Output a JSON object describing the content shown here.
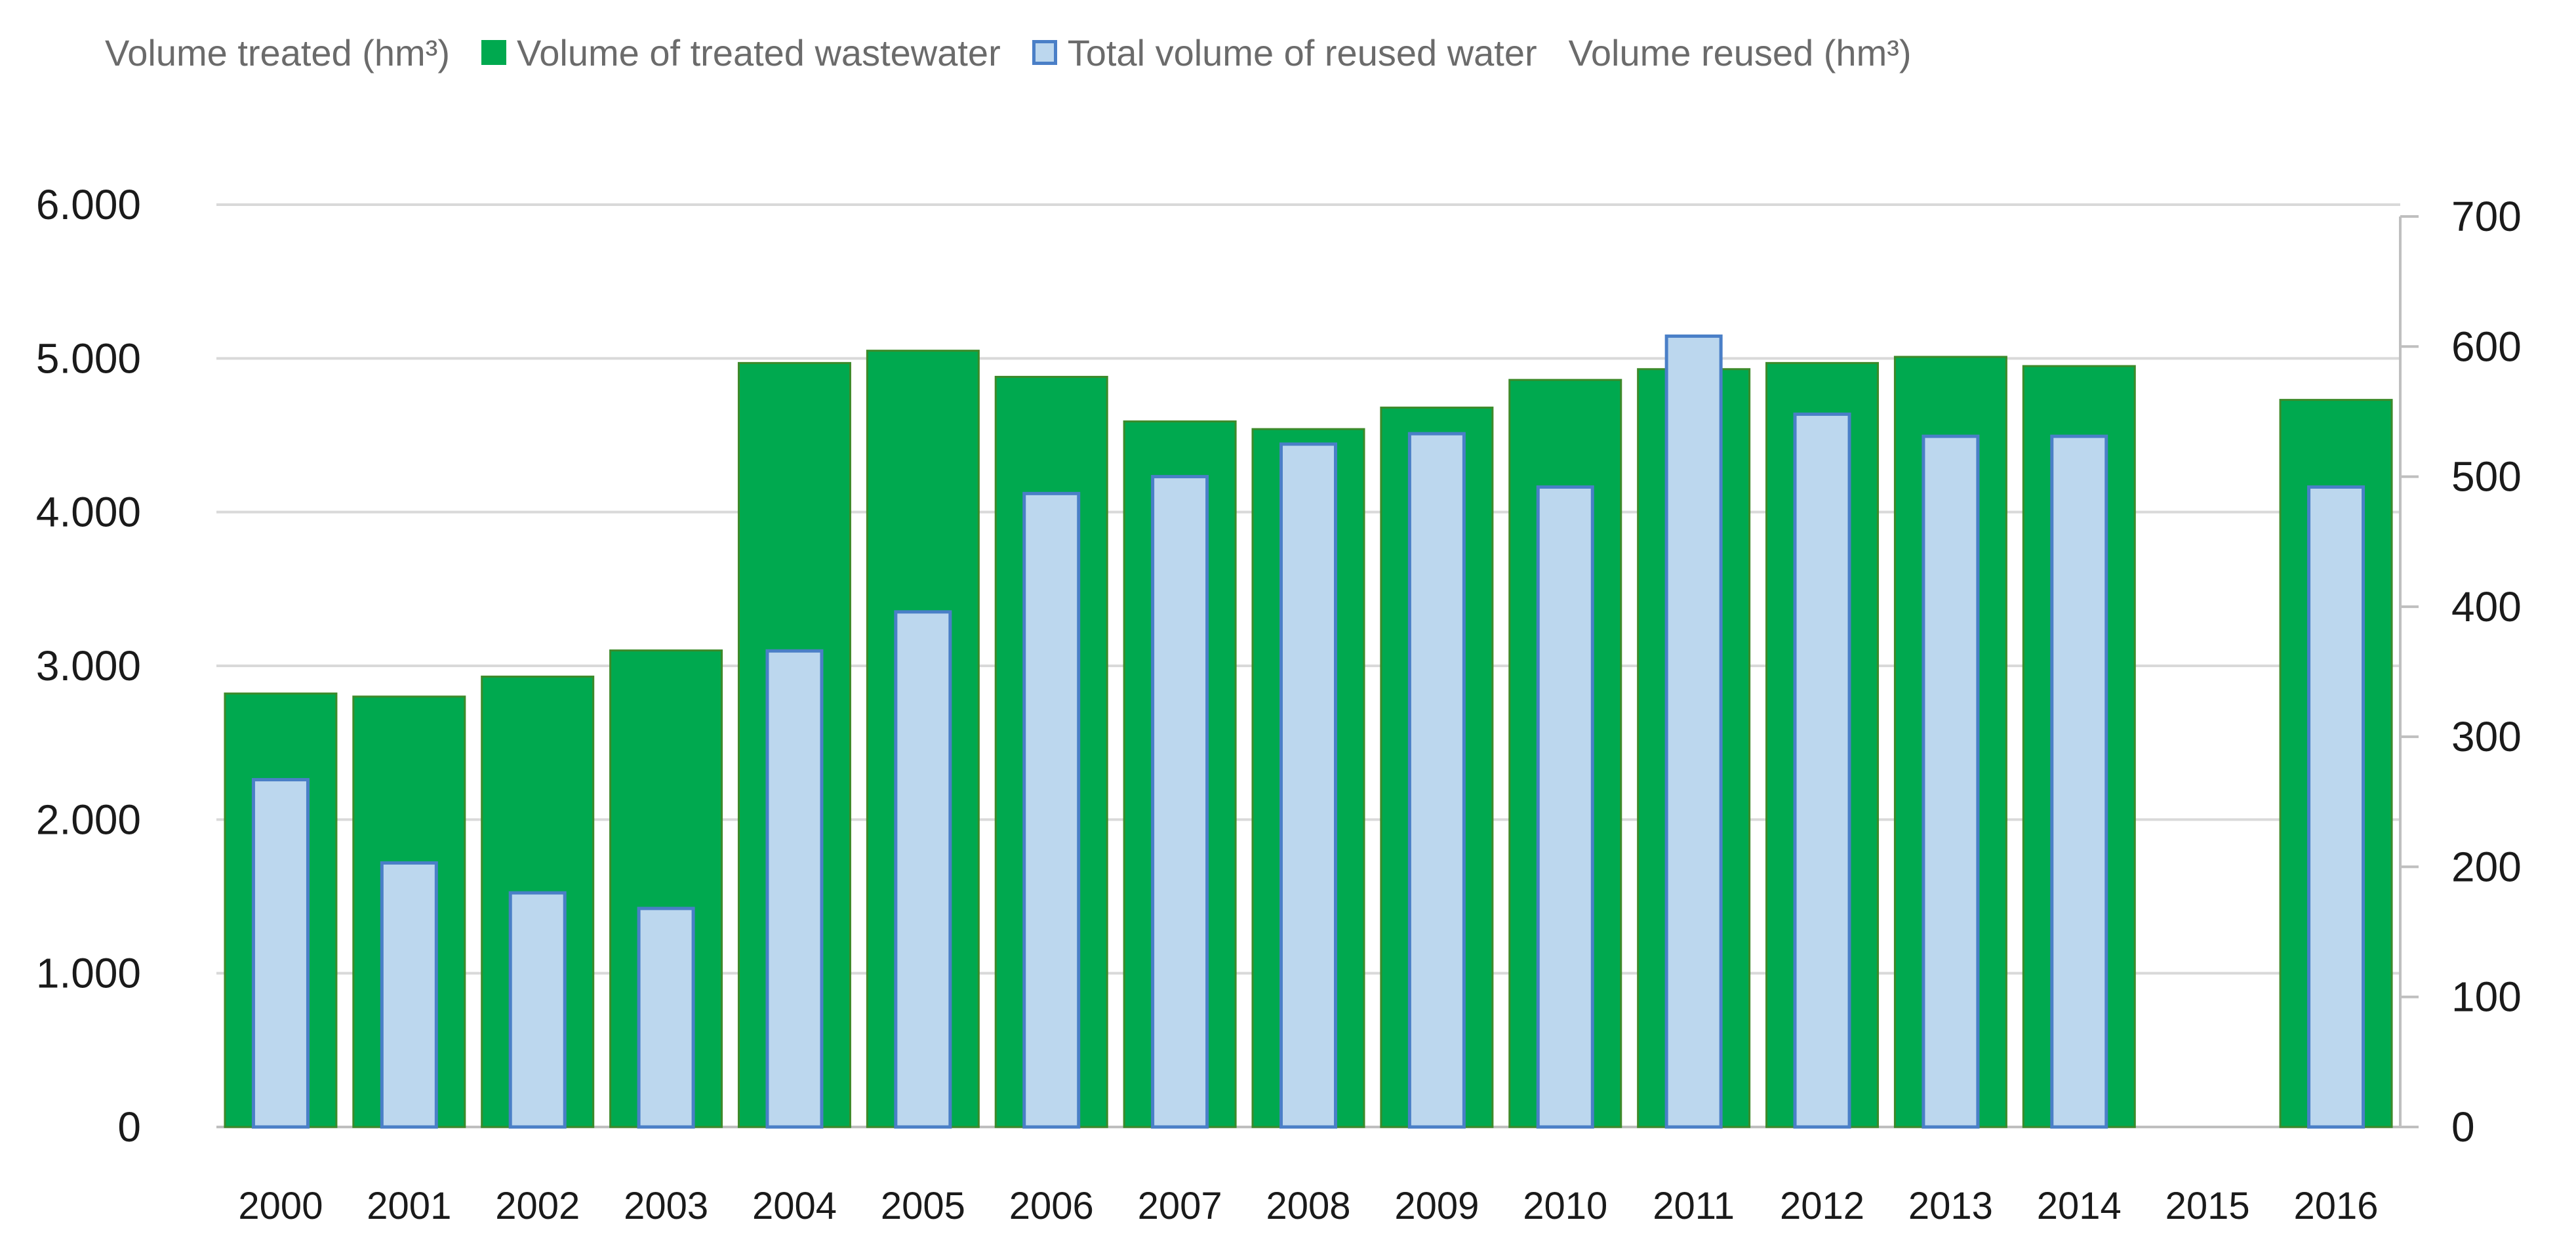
{
  "chart_data": {
    "type": "bar",
    "title": "",
    "legend": [
      {
        "label": "Volume treated (hm³)",
        "swatch": "none"
      },
      {
        "label": "Volume of treated wastewater",
        "swatch": "green"
      },
      {
        "label": "Total volume of reused water",
        "swatch": "blue"
      },
      {
        "label": "Volume reused (hm³)",
        "swatch": "none"
      }
    ],
    "categories": [
      "2000",
      "2001",
      "2002",
      "2003",
      "2004",
      "2005",
      "2006",
      "2007",
      "2008",
      "2009",
      "2010",
      "2011",
      "2012",
      "2013",
      "2014",
      "2015",
      "2016"
    ],
    "series": [
      {
        "name": "Volume of treated wastewater",
        "axis": "left",
        "color": "#00a94f",
        "values": [
          2820,
          2800,
          2930,
          3100,
          4970,
          5050,
          4880,
          4590,
          4540,
          4680,
          4860,
          4930,
          4970,
          5010,
          4950,
          null,
          4730
        ]
      },
      {
        "name": "Total volume of reused water",
        "axis": "right",
        "color": "#bcd7ee",
        "edge_color": "#4a7fc7",
        "values": [
          267,
          203,
          180,
          168,
          366,
          396,
          487,
          500,
          525,
          533,
          492,
          608,
          548,
          531,
          531,
          null,
          492
        ]
      }
    ],
    "y_left": {
      "ylim": [
        0,
        6000
      ],
      "ticks": [
        "0",
        "1.000",
        "2.000",
        "3.000",
        "4.000",
        "5.000",
        "6.000"
      ]
    },
    "y_right": {
      "ylim": [
        0,
        700
      ],
      "ticks": [
        "0",
        "100",
        "200",
        "300",
        "400",
        "500",
        "600",
        "700"
      ]
    },
    "grid": true
  }
}
